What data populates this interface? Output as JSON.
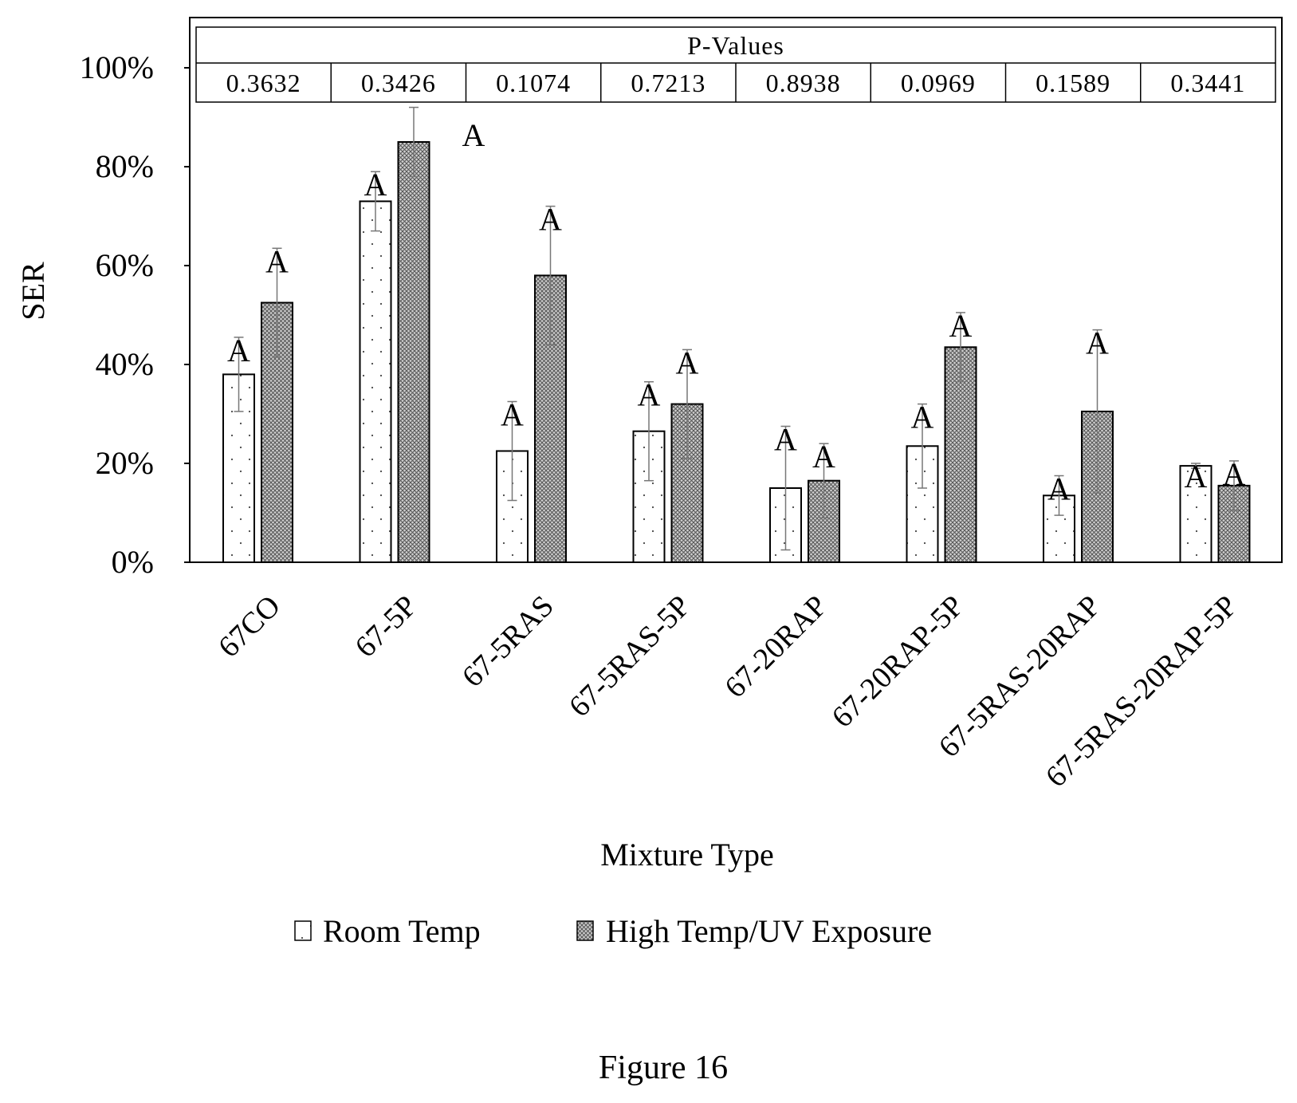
{
  "figure_caption": "Figure 16",
  "pvalue_table": {
    "header": "P-Values",
    "values": [
      "0.3632",
      "0.3426",
      "0.1074",
      "0.7213",
      "0.8938",
      "0.0969",
      "0.1589",
      "0.3441"
    ]
  },
  "chart_data": {
    "type": "bar",
    "ylabel": "SER",
    "xlabel": "Mixture Type",
    "ylim": [
      0,
      100
    ],
    "yticks": [
      0,
      20,
      40,
      60,
      80,
      100
    ],
    "ytick_labels": [
      "0%",
      "20%",
      "40%",
      "60%",
      "80%",
      "100%"
    ],
    "categories": [
      "67CO",
      "67-5P",
      "67-5RAS",
      "67-5RAS-5P",
      "67-20RAP",
      "67-20RAP-5P",
      "67-5RAS-20RAP",
      "67-5RAS-20RAP-5P"
    ],
    "series": [
      {
        "name": "Room Temp",
        "pattern": "dots",
        "fill": "#ffffff",
        "values": [
          38,
          73,
          22.5,
          26.5,
          15,
          23.5,
          13.5,
          19.5
        ],
        "errors": [
          7.5,
          6,
          10,
          10,
          12.5,
          8.5,
          4,
          0.5
        ],
        "letters": [
          "A",
          "A",
          "A",
          "A",
          "A",
          "A",
          "A",
          "A"
        ]
      },
      {
        "name": "High Temp/UV Exposure",
        "pattern": "crosshatch",
        "fill": "#c8c8c8",
        "values": [
          52.5,
          85,
          58,
          32,
          16.5,
          43.5,
          30.5,
          15.5
        ],
        "errors": [
          11,
          7,
          14,
          11,
          7.5,
          7,
          16.5,
          5
        ],
        "letters": [
          "A",
          "A",
          "A",
          "A",
          "A",
          "A",
          "A",
          "A"
        ]
      }
    ],
    "legend_position": "bottom-center",
    "grid": false
  }
}
